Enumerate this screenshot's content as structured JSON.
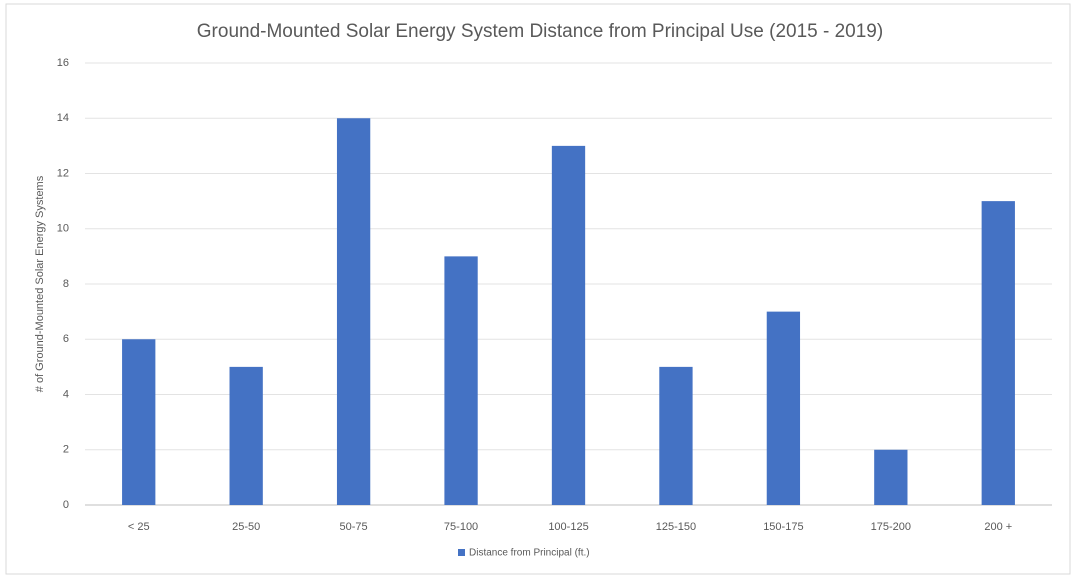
{
  "chart_data": {
    "type": "bar",
    "title": "Ground-Mounted Solar Energy System Distance from Principal Use (2015 - 2019)",
    "y_label": "# of Ground-Mounted Solar Energy Systems",
    "categories": [
      "< 25",
      "25-50",
      "50-75",
      "75-100",
      "100-125",
      "125-150",
      "150-175",
      "175-200",
      "200 +"
    ],
    "series": [
      {
        "name": "Distance from Principal (ft.)",
        "color": "#4472c4",
        "values": [
          6,
          5,
          14,
          9,
          13,
          5,
          7,
          2,
          11
        ]
      }
    ],
    "ylim": [
      0,
      16
    ],
    "yticks": [
      0,
      2,
      4,
      6,
      8,
      10,
      12,
      14,
      16
    ],
    "grid": true,
    "legend": "bottom"
  }
}
